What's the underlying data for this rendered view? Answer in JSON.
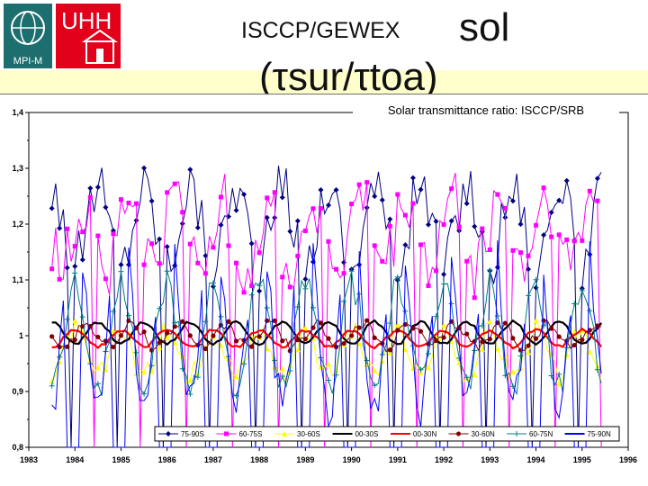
{
  "header": {
    "title_line1": "ISCCP/GEWEX",
    "title_word": "sol",
    "title_line2": "(τsur/τtoa)",
    "logo_mpi_text": "MPI-M",
    "logo_uhh_text": "UHH"
  },
  "colors": {
    "band": "#ffffcc",
    "frame": "#000000"
  },
  "chart_data": {
    "type": "line",
    "title": "Solar transmittance ratio: ISCCP/SRB",
    "xlabel": "",
    "ylabel": "",
    "xlim": [
      1983,
      1996
    ],
    "ylim": [
      0.8,
      1.4
    ],
    "x_ticks": [
      "1983",
      "1984",
      "1985",
      "1986",
      "1987",
      "1988",
      "1989",
      "1990",
      "1991",
      "1992",
      "1993",
      "1994",
      "1995",
      "1996"
    ],
    "y_ticks": [
      "1,4",
      "1,3",
      "1,2",
      "1,1",
      "1",
      "0,9",
      "0,8"
    ],
    "grid": false,
    "legend_position": "bottom",
    "x_months": "monthly, Jul 1983 - Jun 1995",
    "series": [
      {
        "name": "75-90S",
        "color": "#000080",
        "marker": "diamond",
        "baseline": 1.2,
        "amplitude": 0.07,
        "phase": 0.0,
        "noise": 0.05,
        "clip_low": 0.8
      },
      {
        "name": "60-75S",
        "color": "#ff00ff",
        "marker": "square",
        "baseline": 1.18,
        "amplitude": 0.06,
        "phase": 0.3,
        "noise": 0.06,
        "clip_low": 0.8
      },
      {
        "name": "30-60S",
        "color": "#ffff00",
        "marker": "triangle",
        "baseline": 0.97,
        "amplitude": 0.04,
        "phase": 0.5,
        "noise": 0.02,
        "clip_low": 0.8
      },
      {
        "name": "00-30S",
        "color": "#000000",
        "marker": "none",
        "baseline": 1.005,
        "amplitude": 0.02,
        "phase": 0.0,
        "noise": 0.003,
        "clip_low": 0.8
      },
      {
        "name": "00-30N",
        "color": "#ff0000",
        "marker": "none",
        "baseline": 0.995,
        "amplitude": 0.015,
        "phase": 0.5,
        "noise": 0.003,
        "clip_low": 0.8
      },
      {
        "name": "30-60N",
        "color": "#800000",
        "marker": "circle",
        "baseline": 1.0,
        "amplitude": 0.02,
        "phase": 0.25,
        "noise": 0.01,
        "clip_low": 0.8
      },
      {
        "name": "60-75N",
        "color": "#008080",
        "marker": "plus",
        "baseline": 1.0,
        "amplitude": 0.09,
        "phase": 0.5,
        "noise": 0.03,
        "clip_low": 0.8
      },
      {
        "name": "75-90N",
        "color": "#0000ff",
        "marker": "none",
        "baseline": 1.05,
        "amplitude": 0.18,
        "phase": 0.5,
        "noise": 0.04,
        "clip_low": 0.8
      }
    ]
  }
}
